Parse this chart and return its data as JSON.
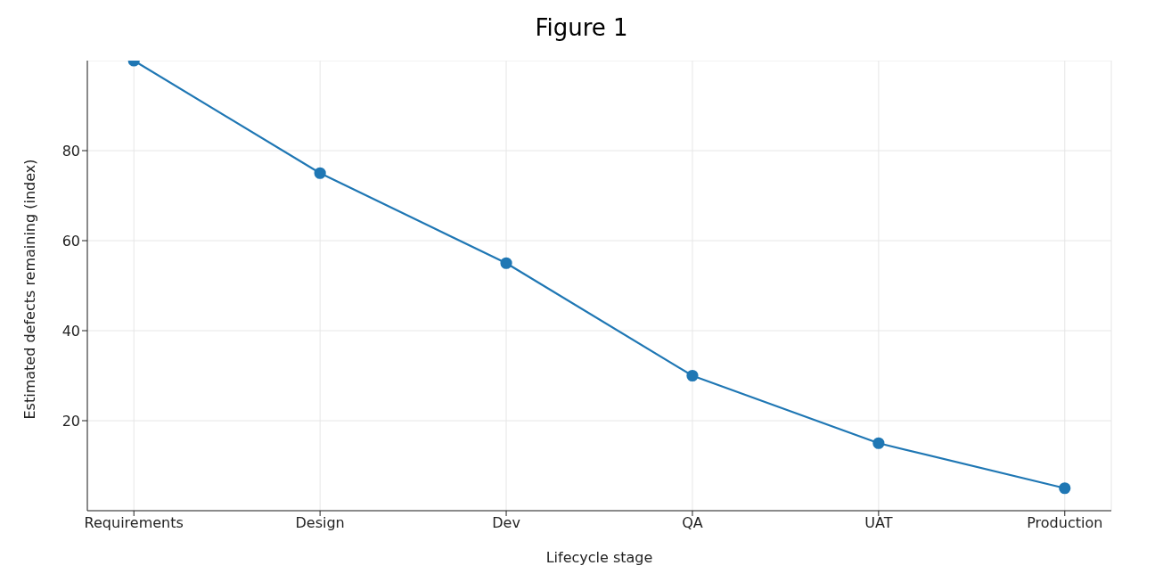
{
  "chart_data": {
    "type": "line",
    "title": "Figure 1",
    "xlabel": "Lifecycle stage",
    "ylabel": "Estimated defects remaining (index)",
    "categories": [
      "Requirements",
      "Design",
      "Dev",
      "QA",
      "UAT",
      "Production"
    ],
    "series": [
      {
        "color": "#1f77b4",
        "values": [
          100,
          75,
          55,
          30,
          15,
          5
        ]
      }
    ],
    "ylim": [
      0,
      100
    ],
    "yticks": [
      20,
      40,
      60,
      80
    ],
    "grid": true,
    "marker": "circle",
    "line_style": "solid"
  }
}
